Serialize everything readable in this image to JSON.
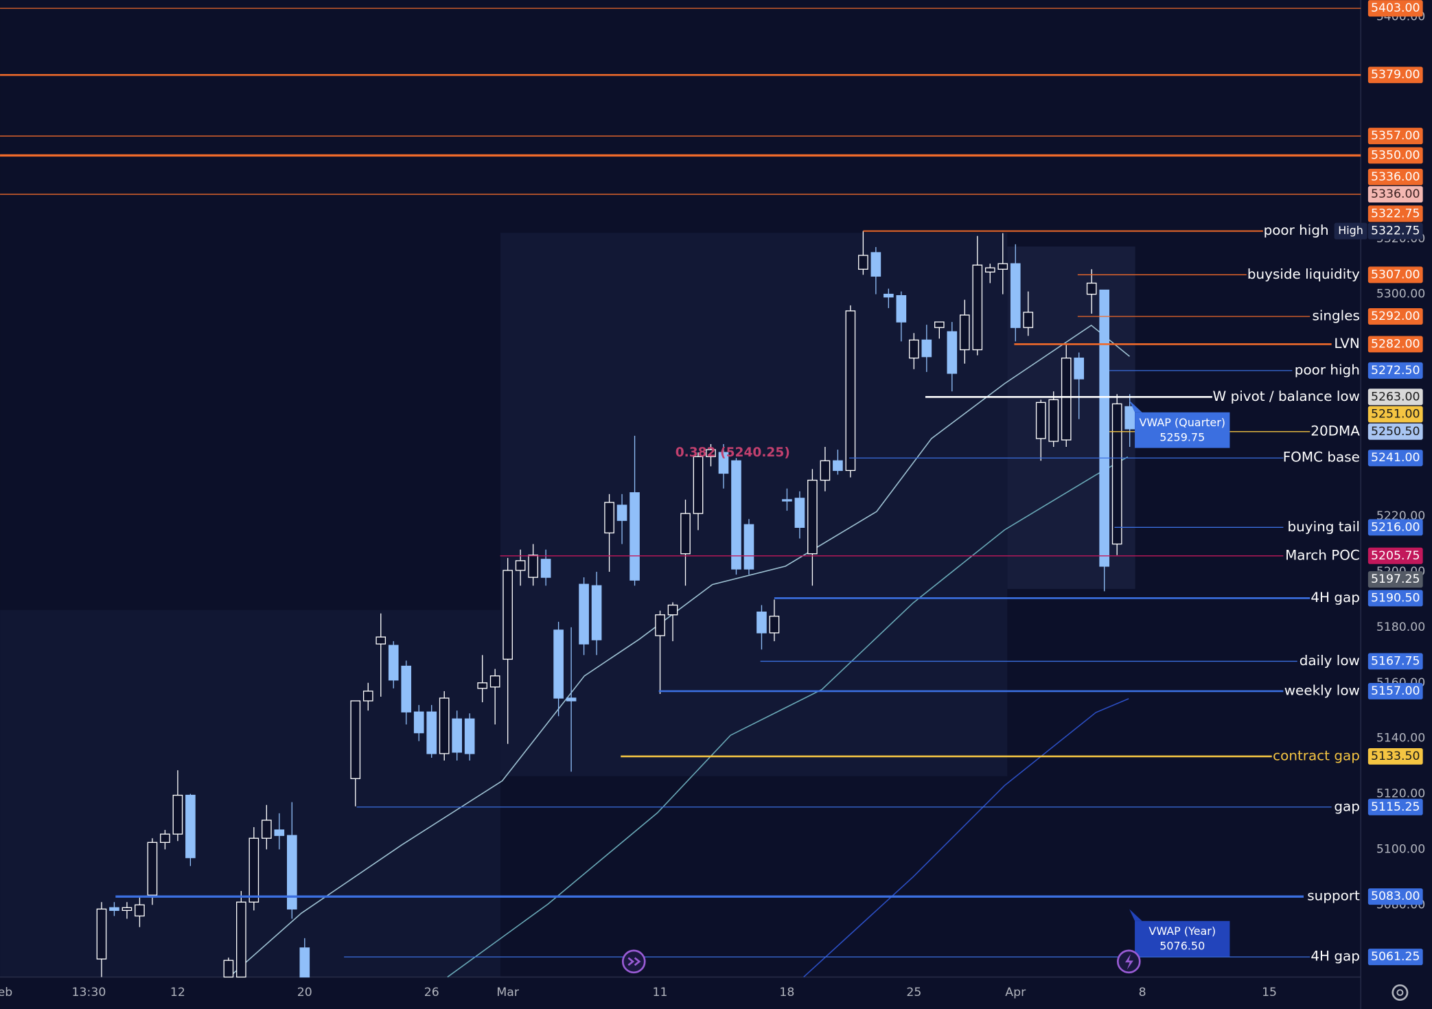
{
  "chart_data": {
    "type": "candlestick",
    "up_color": "#ffffff",
    "down_color": "#90bff9",
    "xlim": [
      0,
      107.2
    ],
    "ylim": [
      5054,
      5406
    ],
    "xticks": [
      {
        "value": 0.4,
        "label": "eb"
      },
      {
        "value": 7,
        "label": "13:30"
      },
      {
        "value": 14,
        "label": "12"
      },
      {
        "value": 24,
        "label": "20"
      },
      {
        "value": 34,
        "label": "26"
      },
      {
        "value": 40,
        "label": "Mar"
      },
      {
        "value": 52,
        "label": "11"
      },
      {
        "value": 62,
        "label": "18"
      },
      {
        "value": 72,
        "label": "25"
      },
      {
        "value": 80,
        "label": "Apr"
      },
      {
        "value": 90,
        "label": "8"
      },
      {
        "value": 100,
        "label": "15"
      }
    ],
    "yticks": [
      {
        "value": 5080,
        "label": "5080.00"
      },
      {
        "value": 5100,
        "label": "5100.00"
      },
      {
        "value": 5120,
        "label": "5120.00"
      },
      {
        "value": 5140,
        "label": "5140.00"
      },
      {
        "value": 5160,
        "label": "5160.00"
      },
      {
        "value": 5180,
        "label": "5180.00"
      },
      {
        "value": 5200,
        "label": "5200.00"
      },
      {
        "value": 5220,
        "label": "5220.00"
      },
      {
        "value": 5300,
        "label": "5300.00"
      },
      {
        "value": 5320,
        "label": "5320.00"
      },
      {
        "value": 5400,
        "label": "5400.00"
      }
    ],
    "candles": [
      {
        "x": 8,
        "open": 5060.5,
        "high": 5081,
        "low": 5054,
        "close": 5078.5
      },
      {
        "x": 9,
        "open": 5079,
        "high": 5081,
        "low": 5076,
        "close": 5078
      },
      {
        "x": 10,
        "open": 5078,
        "high": 5081,
        "low": 5075,
        "close": 5079
      },
      {
        "x": 11,
        "open": 5076,
        "high": 5083,
        "low": 5072,
        "close": 5080
      },
      {
        "x": 12,
        "open": 5083.5,
        "high": 5104,
        "low": 5080,
        "close": 5102.5
      },
      {
        "x": 13,
        "open": 5102.5,
        "high": 5107,
        "low": 5100,
        "close": 5105.5
      },
      {
        "x": 14,
        "open": 5105.5,
        "high": 5128.5,
        "low": 5103,
        "close": 5119.5
      },
      {
        "x": 15,
        "open": 5119.5,
        "high": 5120,
        "low": 5094,
        "close": 5097
      },
      {
        "x": 18,
        "open": 5054,
        "high": 5061,
        "low": 5054,
        "close": 5060
      },
      {
        "x": 19,
        "open": 5054,
        "high": 5085,
        "low": 5054,
        "close": 5081
      },
      {
        "x": 20,
        "open": 5081,
        "high": 5108,
        "low": 5078,
        "close": 5104
      },
      {
        "x": 21,
        "open": 5104,
        "high": 5116,
        "low": 5100,
        "close": 5110.5
      },
      {
        "x": 22,
        "open": 5107,
        "high": 5113,
        "low": 5100,
        "close": 5105
      },
      {
        "x": 23,
        "open": 5105,
        "high": 5117,
        "low": 5075,
        "close": 5078.5
      },
      {
        "x": 24,
        "open": 5064.5,
        "high": 5068,
        "low": 5054,
        "close": 5054
      },
      {
        "x": 28,
        "open": 5125.5,
        "high": 5153.5,
        "low": 5115.5,
        "close": 5153.5
      },
      {
        "x": 29,
        "open": 5153.5,
        "high": 5160,
        "low": 5150,
        "close": 5157
      },
      {
        "x": 30,
        "open": 5174,
        "high": 5185,
        "low": 5155,
        "close": 5176.5
      },
      {
        "x": 31,
        "open": 5173.5,
        "high": 5175,
        "low": 5158,
        "close": 5161
      },
      {
        "x": 32,
        "open": 5166,
        "high": 5168,
        "low": 5145,
        "close": 5149.5
      },
      {
        "x": 33,
        "open": 5149.5,
        "high": 5152,
        "low": 5139,
        "close": 5142
      },
      {
        "x": 34,
        "open": 5149.5,
        "high": 5152,
        "low": 5133,
        "close": 5134.5
      },
      {
        "x": 35,
        "open": 5134.5,
        "high": 5157,
        "low": 5132,
        "close": 5154.5
      },
      {
        "x": 36,
        "open": 5147,
        "high": 5150,
        "low": 5132,
        "close": 5135
      },
      {
        "x": 37,
        "open": 5147,
        "high": 5149,
        "low": 5132,
        "close": 5134.5
      },
      {
        "x": 38,
        "open": 5158,
        "high": 5170,
        "low": 5153,
        "close": 5160
      },
      {
        "x": 39,
        "open": 5158.5,
        "high": 5165,
        "low": 5145,
        "close": 5162.5
      },
      {
        "x": 40,
        "open": 5168.5,
        "high": 5205,
        "low": 5138,
        "close": 5200.5
      },
      {
        "x": 41,
        "open": 5200.5,
        "high": 5208,
        "low": 5195,
        "close": 5204
      },
      {
        "x": 42,
        "open": 5198,
        "high": 5210,
        "low": 5195,
        "close": 5206
      },
      {
        "x": 43,
        "open": 5204.5,
        "high": 5208,
        "low": 5195,
        "close": 5198
      },
      {
        "x": 44,
        "open": 5179,
        "high": 5182,
        "low": 5148,
        "close": 5154.5
      },
      {
        "x": 45,
        "open": 5154.5,
        "high": 5180,
        "low": 5128,
        "close": 5153.5
      },
      {
        "x": 46,
        "open": 5195.5,
        "high": 5198,
        "low": 5170,
        "close": 5174
      },
      {
        "x": 47,
        "open": 5195,
        "high": 5200,
        "low": 5170,
        "close": 5175.5
      },
      {
        "x": 48,
        "open": 5214,
        "high": 5228,
        "low": 5200,
        "close": 5225
      },
      {
        "x": 49,
        "open": 5224,
        "high": 5228,
        "low": 5210,
        "close": 5218.5
      },
      {
        "x": 50,
        "open": 5228.5,
        "high": 5249,
        "low": 5195,
        "close": 5197
      },
      {
        "x": 52,
        "open": 5177,
        "high": 5186,
        "low": 5156,
        "close": 5184.5
      },
      {
        "x": 53,
        "open": 5184.5,
        "high": 5189,
        "low": 5175,
        "close": 5188
      },
      {
        "x": 54,
        "open": 5206.5,
        "high": 5226,
        "low": 5195,
        "close": 5221
      },
      {
        "x": 55,
        "open": 5221,
        "high": 5243,
        "low": 5215,
        "close": 5241.5
      },
      {
        "x": 56,
        "open": 5241.5,
        "high": 5246,
        "low": 5238,
        "close": 5244
      },
      {
        "x": 57,
        "open": 5243,
        "high": 5246,
        "low": 5230,
        "close": 5235.5
      },
      {
        "x": 58,
        "open": 5240,
        "high": 5241,
        "low": 5199,
        "close": 5201
      },
      {
        "x": 59,
        "open": 5217,
        "high": 5219,
        "low": 5199,
        "close": 5201
      },
      {
        "x": 60,
        "open": 5185.5,
        "high": 5188,
        "low": 5172,
        "close": 5178
      },
      {
        "x": 61,
        "open": 5178,
        "high": 5190,
        "low": 5175,
        "close": 5184
      },
      {
        "x": 62,
        "open": 5226,
        "high": 5230,
        "low": 5222,
        "close": 5225.5
      },
      {
        "x": 63,
        "open": 5226.5,
        "high": 5229,
        "low": 5212,
        "close": 5216
      },
      {
        "x": 64,
        "open": 5206.5,
        "high": 5237,
        "low": 5195,
        "close": 5233
      },
      {
        "x": 65,
        "open": 5233,
        "high": 5245,
        "low": 5229,
        "close": 5240
      },
      {
        "x": 66,
        "open": 5240,
        "high": 5244,
        "low": 5235,
        "close": 5236.5
      },
      {
        "x": 67,
        "open": 5236.5,
        "high": 5296,
        "low": 5234,
        "close": 5294
      },
      {
        "x": 68,
        "open": 5309,
        "high": 5322.75,
        "low": 5307,
        "close": 5314
      },
      {
        "x": 69,
        "open": 5315,
        "high": 5317,
        "low": 5300,
        "close": 5306.5
      },
      {
        "x": 70,
        "open": 5300,
        "high": 5302,
        "low": 5295,
        "close": 5299
      },
      {
        "x": 71,
        "open": 5299.5,
        "high": 5301,
        "low": 5283,
        "close": 5290
      },
      {
        "x": 72,
        "open": 5277,
        "high": 5286,
        "low": 5273,
        "close": 5283.5
      },
      {
        "x": 73,
        "open": 5283.5,
        "high": 5289,
        "low": 5272,
        "close": 5277.5
      },
      {
        "x": 74,
        "open": 5288,
        "high": 5290,
        "low": 5284,
        "close": 5290
      },
      {
        "x": 75,
        "open": 5286.5,
        "high": 5290,
        "low": 5265,
        "close": 5271.5
      },
      {
        "x": 76,
        "open": 5280,
        "high": 5298,
        "low": 5275,
        "close": 5292.5
      },
      {
        "x": 77,
        "open": 5280,
        "high": 5321,
        "low": 5278,
        "close": 5310.5
      },
      {
        "x": 78,
        "open": 5308,
        "high": 5311,
        "low": 5304,
        "close": 5309.5
      },
      {
        "x": 79,
        "open": 5309,
        "high": 5322,
        "low": 5300,
        "close": 5311
      },
      {
        "x": 80,
        "open": 5311,
        "high": 5318,
        "low": 5283,
        "close": 5288
      },
      {
        "x": 81,
        "open": 5288,
        "high": 5301,
        "low": 5285,
        "close": 5293.5
      },
      {
        "x": 82,
        "open": 5248,
        "high": 5262,
        "low": 5240,
        "close": 5261
      },
      {
        "x": 83,
        "open": 5247,
        "high": 5265,
        "low": 5245,
        "close": 5262
      },
      {
        "x": 84,
        "open": 5247.5,
        "high": 5282,
        "low": 5245,
        "close": 5277
      },
      {
        "x": 85,
        "open": 5277,
        "high": 5279,
        "low": 5255,
        "close": 5269.5
      },
      {
        "x": 86,
        "open": 5300,
        "high": 5309,
        "low": 5293,
        "close": 5304
      },
      {
        "x": 87,
        "open": 5301.5,
        "high": 5301.5,
        "low": 5193,
        "close": 5202
      },
      {
        "x": 88,
        "open": 5210,
        "high": 5264,
        "low": 5206,
        "close": 5260.5
      },
      {
        "x": 89,
        "open": 5259.5,
        "high": 5264,
        "low": 5245,
        "close": 5251.5
      }
    ],
    "series": [
      {
        "color": "#9fc3d4",
        "x": [
          18.06,
          23.74,
          31.65,
          39.57,
          46.04,
          50.36,
          56.12,
          61.87,
          69.06,
          73.38,
          79.14,
          85.97,
          88.99
        ],
        "values": [
          5054,
          5077,
          5101.6,
          5124.7,
          5162.5,
          5175.7,
          5195.4,
          5202,
          5221.7,
          5248,
          5267.8,
          5288.8,
          5277.6
        ]
      },
      {
        "color": "#6aaab8",
        "x": [
          35.25,
          43.17,
          51.8,
          57.55,
          64.75,
          71.94,
          79.14,
          86.33,
          88.85
        ],
        "values": [
          5054,
          5080.3,
          5113.2,
          5141.1,
          5157.6,
          5188.8,
          5215.1,
          5234.9,
          5241.4
        ]
      },
      {
        "color": "#2c4fc4",
        "x": [
          63.31,
          71.94,
          79.14,
          86.33,
          88.92
        ],
        "values": [
          5054,
          5090.1,
          5123,
          5149.3,
          5154.3
        ]
      }
    ],
    "levels": [
      {
        "price": 5403,
        "price_label": "5403.00",
        "tag": "#f06a2a",
        "line": "#f06a2a",
        "x1": 0,
        "x2": 107.2,
        "width": 1
      },
      {
        "price": 5379,
        "price_label": "5379.00",
        "tag": "#f06a2a",
        "line": "#f06a2a",
        "x1": 0,
        "x2": 107.2,
        "width": 2
      },
      {
        "price": 5357,
        "price_label": "5357.00",
        "tag": "#f06a2a",
        "line": "#f06a2a",
        "x1": 0,
        "x2": 107.2,
        "width": 1
      },
      {
        "price": 5350,
        "price_label": "5350.00",
        "tag": "#f06a2a",
        "line": "#f06a2a",
        "x1": 0,
        "x2": 107.2,
        "width": 2.5
      },
      {
        "price": 5336,
        "price_label": "5336.00",
        "tag": "#f06a2a",
        "line": "#f06a2a",
        "x1": 0,
        "x2": 107.2,
        "width": 1
      },
      {
        "price": 5336,
        "price_label": "5336.00",
        "tag": "#f4b8b2",
        "text_color": "#3a2020"
      },
      {
        "price": 5322.75,
        "price_label": "5322.75",
        "label": "poor high",
        "tag": "#f06a2a",
        "line": "#f06a2a",
        "x1": 68,
        "x2": 99.5,
        "width": 1.5
      },
      {
        "price": 5322.75,
        "price_label": "5322.75",
        "badge": "High",
        "tag": "#1c2548"
      },
      {
        "price": 5307,
        "price_label": "5307.00",
        "label": "buyside liquidity",
        "tag": "#f06a2a",
        "line": "#f06a2a",
        "x1": 84.9,
        "x2": 98.2,
        "width": 1
      },
      {
        "price": 5292,
        "price_label": "5292.00",
        "label": "singles",
        "tag": "#f06a2a",
        "line": "#f06a2a",
        "x1": 84.9,
        "x2": 103.2,
        "width": 1
      },
      {
        "price": 5282,
        "price_label": "5282.00",
        "label": "LVN",
        "tag": "#f06a2a",
        "line": "#f06a2a",
        "x1": 79.9,
        "x2": 104.9,
        "width": 2
      },
      {
        "price": 5272.5,
        "price_label": "5272.50",
        "label": "poor high",
        "tag": "#3b6fe0",
        "line": "#3b6fe0",
        "x1": 87.4,
        "x2": 101.8,
        "width": 1
      },
      {
        "price": 5263,
        "price_label": "5263.00",
        "label": "W pivot / balance low",
        "tag": "#d9d9d9",
        "text_color": "#1a1a1a",
        "line": "#ffffff",
        "x1": 72.9,
        "x2": 95.5,
        "width": 2
      },
      {
        "price": 5251,
        "price_label": "5251.00",
        "tag": "#f5c542",
        "text_color": "#1a1a1a"
      },
      {
        "price": 5250.5,
        "price_label": "5250.50",
        "label": "20DMA",
        "tag": "#a9c5f2",
        "text_color": "#1a1a1a",
        "line": "#f5c542",
        "x1": 87.4,
        "x2": 103.2,
        "width": 1
      },
      {
        "price": 5241,
        "price_label": "5241.00",
        "label": "FOMC base",
        "tag": "#3b6fe0",
        "line": "#3b6fe0",
        "x1": 66.9,
        "x2": 101.1,
        "width": 1
      },
      {
        "price": 5216,
        "price_label": "5216.00",
        "label": "buying tail",
        "tag": "#3b6fe0",
        "line": "#3b6fe0",
        "x1": 87.8,
        "x2": 101.1,
        "width": 1
      },
      {
        "price": 5205.75,
        "price_label": "5205.75",
        "label": "March POC",
        "tag": "#c2185b",
        "line": "#c2185b",
        "x1": 39.4,
        "x2": 101.1,
        "width": 1
      },
      {
        "price": 5197.25,
        "price_label": "5197.25",
        "tag": "#555b66"
      },
      {
        "price": 5190.5,
        "price_label": "5190.50",
        "label": "4H gap",
        "tag": "#3b6fe0",
        "line": "#3b6fe0",
        "x1": 61,
        "x2": 103.2,
        "width": 2
      },
      {
        "price": 5167.75,
        "price_label": "5167.75",
        "label": "daily low",
        "tag": "#3b6fe0",
        "line": "#3b6fe0",
        "x1": 59.9,
        "x2": 102.2,
        "width": 1
      },
      {
        "price": 5157,
        "price_label": "5157.00",
        "label": "weekly low",
        "tag": "#3b6fe0",
        "line": "#3b6fe0",
        "x1": 51.9,
        "x2": 101.1,
        "width": 2
      },
      {
        "price": 5133.5,
        "price_label": "5133.50",
        "label": "contract gap",
        "label_color": "#f5c542",
        "tag": "#f5c542",
        "text_color": "#1a1a1a",
        "line": "#f5c542",
        "x1": 48.9,
        "x2": 100.2,
        "width": 2
      },
      {
        "price": 5115.25,
        "price_label": "5115.25",
        "label": "gap",
        "tag": "#3b6fe0",
        "line": "#3b6fe0",
        "x1": 28.1,
        "x2": 104.9,
        "width": 1
      },
      {
        "price": 5083,
        "price_label": "5083.00",
        "label": "support",
        "tag": "#3b6fe0",
        "line": "#3b6fe0",
        "x1": 9.1,
        "x2": 102.7,
        "width": 2.5
      },
      {
        "price": 5061.25,
        "price_label": "5061.25",
        "label": "4H gap",
        "tag": "#3b6fe0",
        "line": "#3b6fe0",
        "x1": 27.1,
        "x2": 103.2,
        "width": 1
      }
    ],
    "vwaps": [
      {
        "name": "VWAP (Quarter)",
        "value": 5259.75,
        "value_label": "5259.75",
        "x": 89.4,
        "color": "#3b6fe0"
      },
      {
        "name": "VWAP (Year)",
        "value": 5076.5,
        "value_label": "5076.50",
        "x": 89.4,
        "color": "#2244bb"
      }
    ],
    "annotations": [
      {
        "text": "0.382 (5240.25)",
        "value": 5240.25,
        "x": 53.2,
        "color": "#c2406e"
      }
    ]
  }
}
